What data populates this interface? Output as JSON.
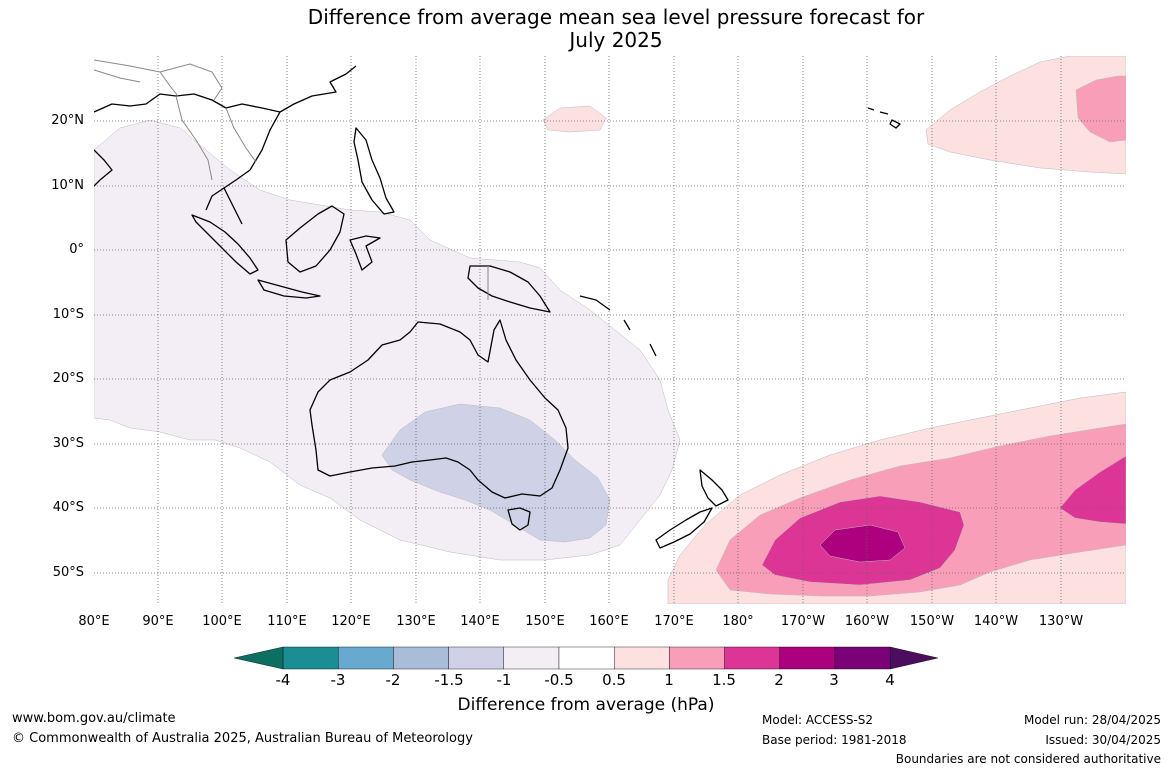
{
  "title": {
    "line1": "Difference from average mean sea level pressure forecast for",
    "line2": "July 2025"
  },
  "map": {
    "lat_labels": [
      "20°N",
      "10°N",
      "0°",
      "10°S",
      "20°S",
      "30°S",
      "40°S",
      "50°S"
    ],
    "lon_labels": [
      "80°E",
      "90°E",
      "100°E",
      "110°E",
      "120°E",
      "130°E",
      "140°E",
      "150°E",
      "160°E",
      "170°E",
      "180°",
      "170°W",
      "160°W",
      "150°W",
      "140°W",
      "130°W"
    ],
    "colors": {
      "neg_1_5_to_neg_1": "#cfd1e6",
      "neg_1_to_neg_0_5": "#f3eef6",
      "pos_0_5_to_1": "#fde0e0",
      "pos_1_to_1_5": "#f99eb9",
      "pos_1_5_to_2": "#dc3596",
      "pos_2_to_3": "#ad007e",
      "coastline": "#000000",
      "borders": "#888888",
      "grid": "#666666"
    }
  },
  "colorbar": {
    "title": "Difference from average (hPa)",
    "labels": [
      "-4",
      "-3",
      "-2",
      "-1.5",
      "-1",
      "-0.5",
      "0.5",
      "1",
      "1.5",
      "2",
      "3",
      "4"
    ],
    "colors": [
      "#1a8e92",
      "#67a9cf",
      "#a9bcd8",
      "#cfd1e6",
      "#f3eef6",
      "#ffffff",
      "#fde0e0",
      "#f99eb9",
      "#dc3596",
      "#ad007e",
      "#7a0177"
    ],
    "under_color": "#0d6e62",
    "over_color": "#4d0d5e"
  },
  "footer": {
    "url": "www.bom.gov.au/climate",
    "copyright": "© Commonwealth of Australia 2025, Australian Bureau of Meteorology",
    "model": "Model: ACCESS-S2",
    "base_period": "Base period: 1981-2018",
    "model_run": "Model run: 28/04/2025",
    "issued": "Issued: 30/04/2025",
    "boundaries": "Boundaries are not considered authoritative"
  }
}
